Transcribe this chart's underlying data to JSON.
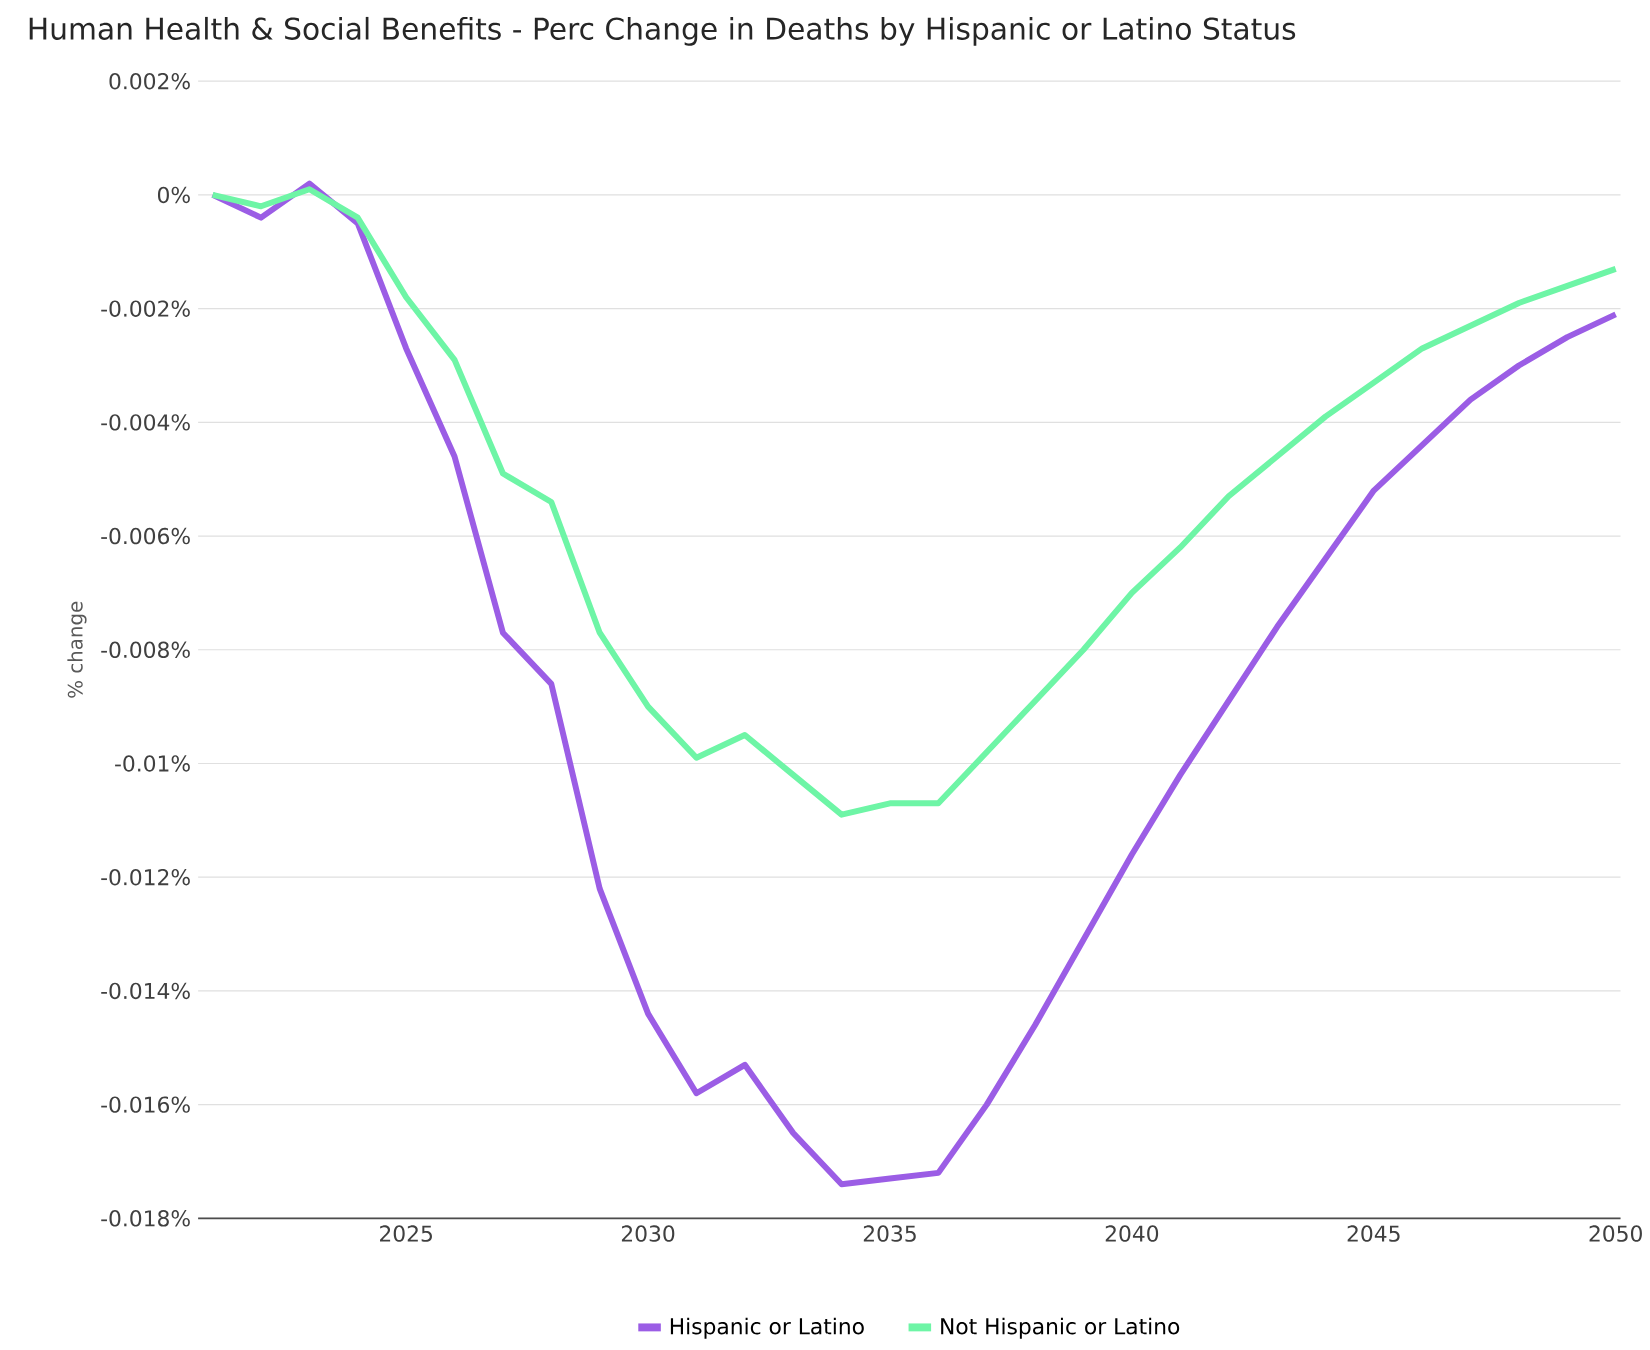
{
  "chart_data": {
    "type": "line",
    "title": "Human Health & Social Benefits - Perc Change in Deaths by Hispanic or Latino Status",
    "ylabel": "% change",
    "x": [
      2021,
      2022,
      2023,
      2024,
      2025,
      2026,
      2027,
      2028,
      2029,
      2030,
      2031,
      2032,
      2033,
      2034,
      2035,
      2036,
      2037,
      2038,
      2039,
      2040,
      2041,
      2042,
      2043,
      2044,
      2045,
      2046,
      2047,
      2048,
      2049,
      2050
    ],
    "series": [
      {
        "name": "Hispanic or Latino",
        "color": "#9b5de5",
        "values": [
          0,
          -0.0004,
          0.0002,
          -0.0005,
          -0.0027,
          -0.0046,
          -0.0077,
          -0.0086,
          -0.0122,
          -0.0144,
          -0.0158,
          -0.0153,
          -0.0165,
          -0.0174,
          -0.0173,
          -0.0172,
          -0.016,
          -0.0146,
          -0.0131,
          -0.0116,
          -0.0102,
          -0.0089,
          -0.0076,
          -0.0064,
          -0.0052,
          -0.0044,
          -0.0036,
          -0.003,
          -0.0025,
          -0.0021
        ]
      },
      {
        "name": "Not Hispanic or Latino",
        "color": "#6ef5a6",
        "values": [
          0,
          -0.0002,
          0.0001,
          -0.0004,
          -0.0018,
          -0.0029,
          -0.0049,
          -0.0054,
          -0.0077,
          -0.009,
          -0.0099,
          -0.0095,
          -0.0102,
          -0.0109,
          -0.0107,
          -0.0107,
          -0.0098,
          -0.0089,
          -0.008,
          -0.007,
          -0.0062,
          -0.0053,
          -0.0046,
          -0.0039,
          -0.0033,
          -0.0027,
          -0.0023,
          -0.0019,
          -0.0016,
          -0.0013
        ]
      }
    ],
    "xlim": [
      2020.7,
      2050.1
    ],
    "ylim": [
      -0.018,
      0.002
    ],
    "xticks": [
      2025,
      2030,
      2035,
      2040,
      2045,
      2050
    ],
    "yticks": [
      {
        "value": 0.002,
        "label": "0.002%"
      },
      {
        "value": 0,
        "label": "0%"
      },
      {
        "value": -0.002,
        "label": "-0.002%"
      },
      {
        "value": -0.004,
        "label": "-0.004%"
      },
      {
        "value": -0.006,
        "label": "-0.006%"
      },
      {
        "value": -0.008,
        "label": "-0.008%"
      },
      {
        "value": -0.01,
        "label": "-0.01%"
      },
      {
        "value": -0.012,
        "label": "-0.012%"
      },
      {
        "value": -0.014,
        "label": "-0.014%"
      },
      {
        "value": -0.016,
        "label": "-0.016%"
      },
      {
        "value": -0.018,
        "label": "-0.018%"
      }
    ],
    "grid": "y",
    "legend": "bottom",
    "marker": "none",
    "line_style": "solid"
  }
}
